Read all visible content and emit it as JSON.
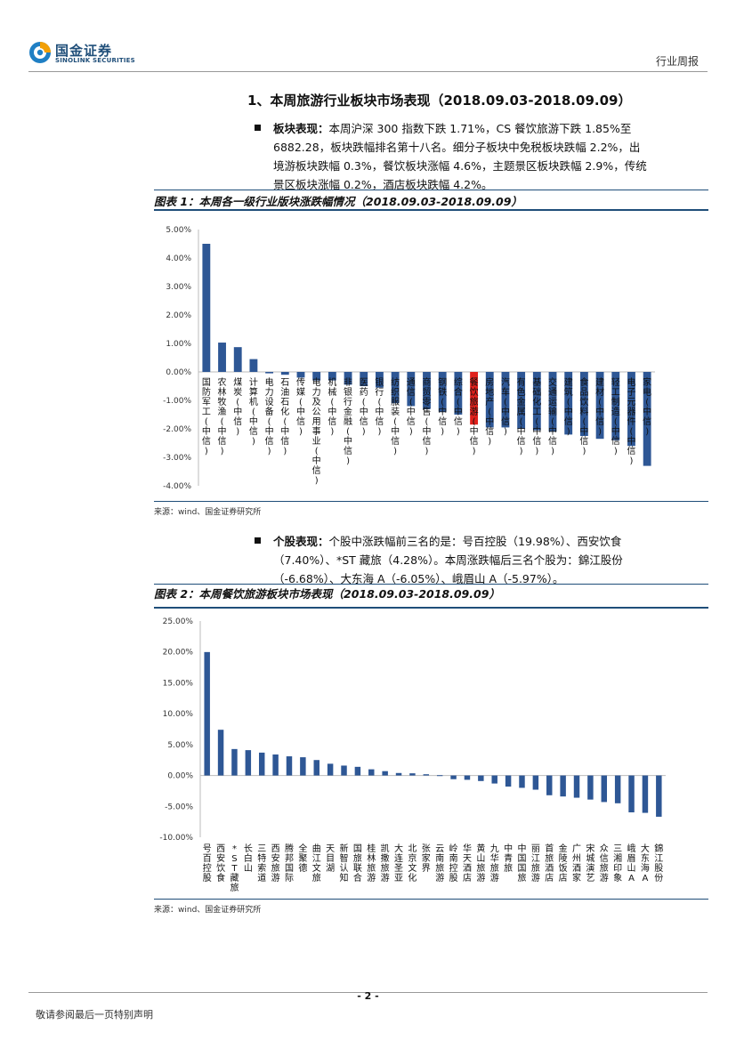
{
  "header": {
    "logo_cn": "国金证券",
    "logo_en": "SINOLINK SECURITIES",
    "report_type": "行业周报"
  },
  "section": {
    "title": "1、本周旅游行业板块市场表现（2018.09.03-2018.09.09）"
  },
  "paragraph1": {
    "label": "板块表现：",
    "line1": "本周沪深 300 指数下跌 1.71%，CS 餐饮旅游下跌 1.85%至",
    "line2": "6882.28，板块跌幅排名第十八名。细分子板块中免税板块跌幅 2.2%，出",
    "line3": "境游板块跌幅 0.3%，餐饮板块涨幅 4.6%，主题景区板块跌幅 2.9%，传统",
    "line4": "景区板块涨幅 0.2%，酒店板块跌幅 4.2%。"
  },
  "figure1": {
    "title": "图表 1：本周各一级行业版块涨跌幅情况（2018.09.03-2018.09.09）",
    "source": "来源：wind、国金证券研究所"
  },
  "paragraph2": {
    "label": "个股表现：",
    "line1": "个股中涨跌幅前三名的是：号百控股（19.98%）、西安饮食",
    "line2": "（7.40%）、*ST 藏旅（4.28%）。本周涨跌幅后三名个股为：錦江股份",
    "line3": "（-6.68%）、大东海 A（-6.05%）、峨眉山 A（-5.97%）。"
  },
  "figure2": {
    "title": "图表 2：本周餐饮旅游板块市场表现（2018.09.03-2018.09.09）",
    "source": "来源：wind、国金证券研究所"
  },
  "footer": {
    "page": "- 2 -",
    "disclaimer": "敬请参阅最后一页特别声明"
  },
  "colors": {
    "bar": "#2e5795",
    "highlight": "#e0201b",
    "brand": "#1f4e79"
  },
  "chart_data": [
    {
      "type": "bar",
      "title": "",
      "ylim": [
        -4,
        5
      ],
      "yticks": [
        "5.00%",
        "4.00%",
        "3.00%",
        "2.00%",
        "1.00%",
        "0.00%",
        "-1.00%",
        "-2.00%",
        "-3.00%",
        "-4.00%"
      ],
      "categories": [
        "国防军工(中信)",
        "农林牧渔(中信)",
        "煤炭(中信)",
        "计算机(中信)",
        "电力设备(中信)",
        "石油石化(中信)",
        "传媒(中信)",
        "电力及公用事业(中信)",
        "机械(中信)",
        "非银行金融(中信)",
        "医药(中信)",
        "银行(中信)",
        "纺织服装(中信)",
        "通信(中信)",
        "商贸零售(中信)",
        "钢铁(中信)",
        "综合(中信)",
        "餐饮旅游(中信)",
        "房地产(中信)",
        "汽车(中信)",
        "有色金属(中信)",
        "基础化工(中信)",
        "交通运输(中信)",
        "建筑(中信)",
        "食品饮料(中信)",
        "建材(中信)",
        "轻工制造(中信)",
        "电子元器件(中信)",
        "家电(中信)"
      ],
      "values": [
        4.5,
        1.03,
        0.87,
        0.45,
        -0.05,
        -0.1,
        -0.2,
        -0.3,
        -0.3,
        -0.45,
        -0.5,
        -0.55,
        -1.1,
        -1.2,
        -1.3,
        -1.4,
        -1.5,
        -1.85,
        -1.95,
        -1.95,
        -2.0,
        -2.05,
        -2.1,
        -2.2,
        -2.25,
        -2.35,
        -2.4,
        -2.6,
        -3.3
      ],
      "highlight_index": 17
    },
    {
      "type": "bar",
      "title": "",
      "ylim": [
        -10,
        25
      ],
      "yticks": [
        "25.00%",
        "20.00%",
        "15.00%",
        "10.00%",
        "5.00%",
        "0.00%",
        "-5.00%",
        "-10.00%"
      ],
      "categories": [
        "号百控股",
        "西安饮食",
        "*ST藏旅",
        "长白山",
        "三特索道",
        "西安旅游",
        "腾邦国际",
        "全聚德",
        "曲江文旅",
        "天目湖",
        "新智认知",
        "国旅联合",
        "桂林旅游",
        "凯撒旅游",
        "大连圣亚",
        "北京文化",
        "张家界",
        "云南旅游",
        "岭南控股",
        "华天酒店",
        "黄山旅游",
        "九华旅游",
        "中青旅",
        "中国国旅",
        "丽江旅游",
        "首旅酒店",
        "金陵饭店",
        "广州酒家",
        "宋城演艺",
        "众信旅游",
        "三湘印象",
        "峨眉山A",
        "大东海A",
        "錦江股份"
      ],
      "values": [
        19.98,
        7.4,
        4.28,
        4.1,
        3.7,
        3.4,
        3.1,
        2.95,
        2.5,
        1.9,
        1.6,
        1.4,
        1.0,
        0.7,
        0.4,
        0.35,
        0.2,
        0.05,
        -0.6,
        -0.7,
        -0.9,
        -1.3,
        -1.8,
        -2.0,
        -2.3,
        -3.2,
        -3.4,
        -3.6,
        -3.9,
        -4.3,
        -4.5,
        -5.97,
        -6.05,
        -6.68
      ]
    }
  ]
}
